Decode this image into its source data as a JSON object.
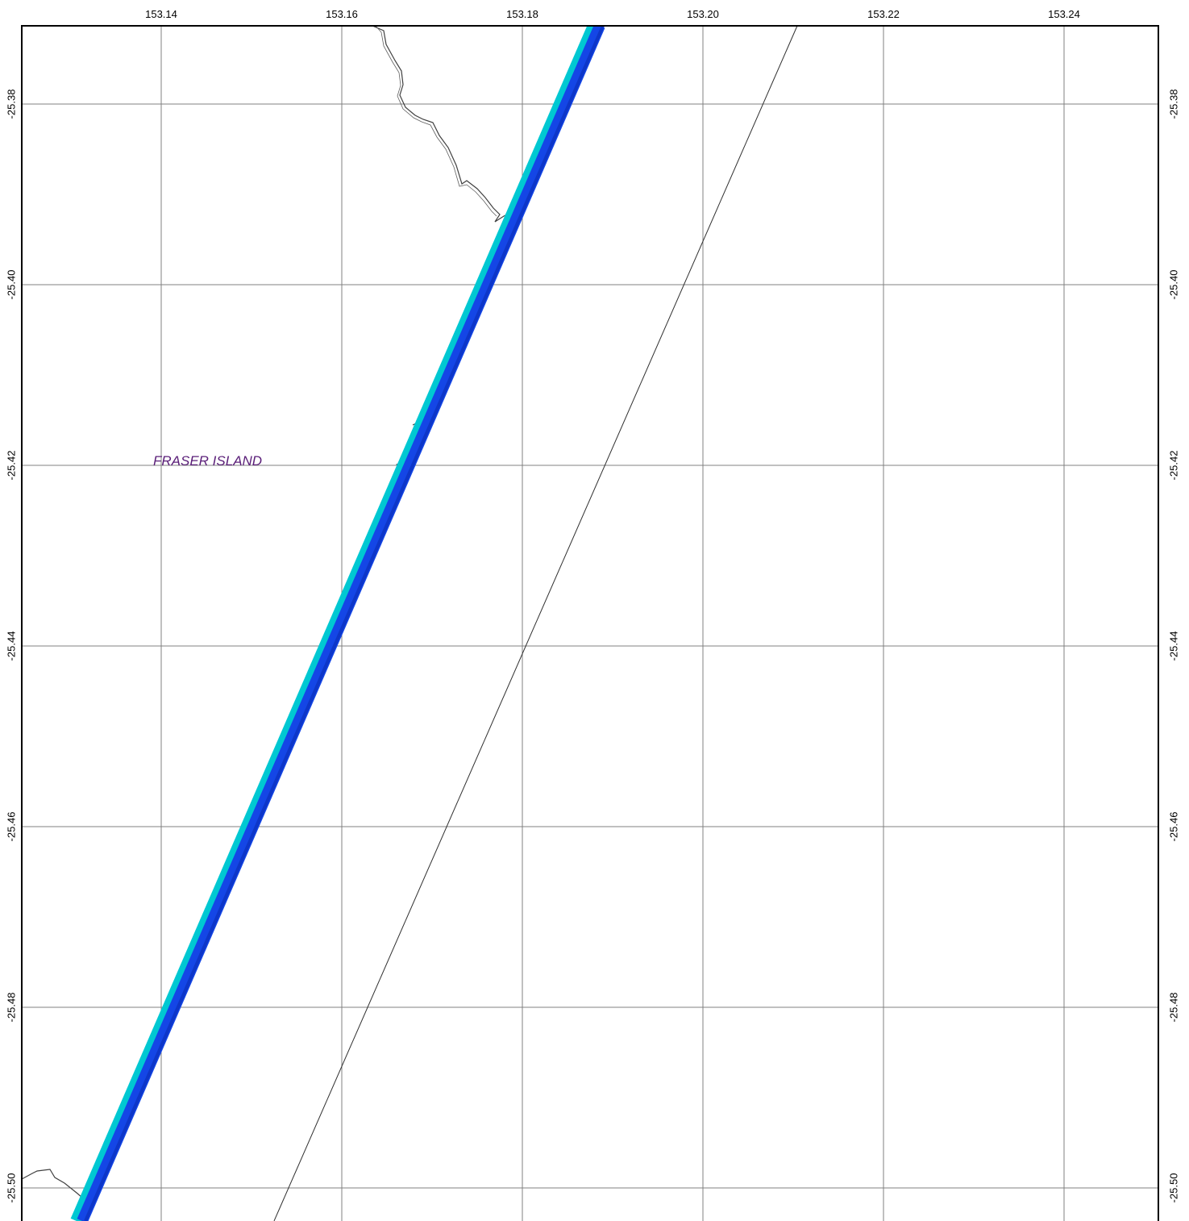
{
  "map": {
    "lon_ticks": [
      "153.14",
      "153.16",
      "153.18",
      "153.20",
      "153.22",
      "153.24"
    ],
    "lat_ticks": [
      "-25.38",
      "-25.40",
      "-25.42",
      "-25.44",
      "-25.46",
      "-25.48",
      "-25.50"
    ],
    "place_label": "FRASER ISLAND",
    "colors": {
      "grid": "#808080",
      "frame": "#000000",
      "coastline": "#404040",
      "survey_swath": "#1446e6",
      "swath_edge": "#00c8d2",
      "place_label": "#5a1e78",
      "track_line": "#303030"
    }
  }
}
